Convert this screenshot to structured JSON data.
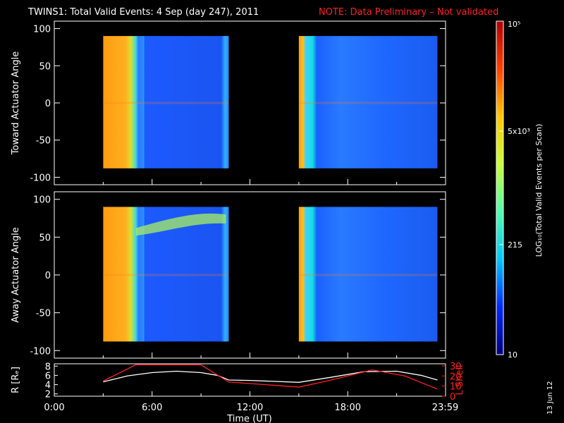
{
  "title": {
    "main": "TWINS1: Total Valid Events:  4 Sep (day 247), 2011",
    "note": "NOTE: Data Preliminary – Not validated"
  },
  "date_stamp": "13 Jun 12",
  "colors": {
    "background": "#000000",
    "axes": "#ffffff",
    "note": "#ff2020",
    "r_line": "#ffffff",
    "lshell_line": "#ff2020"
  },
  "colorbar": {
    "label": "LOG₁₀(Total Valid Events per Scan)",
    "ticks": [
      "10",
      "215",
      "5x10³",
      "10⁵"
    ],
    "colormap": [
      "#00007f",
      "#0028ff",
      "#00c8ff",
      "#50ffaa",
      "#c8ff37",
      "#ffc800",
      "#ff4000",
      "#b00000"
    ]
  },
  "chart_data": [
    {
      "type": "heatmap",
      "ylabel": "Toward Actuator Angle",
      "xlim": [
        0,
        24
      ],
      "ylim": [
        -110,
        110
      ],
      "yticks": [
        "100",
        "50",
        "0",
        "-50",
        "-100"
      ],
      "blocks": [
        {
          "start_hour": 3.0,
          "end_hour": 10.7,
          "angle_range": [
            -88,
            90
          ]
        },
        {
          "start_hour": 15.0,
          "end_hour": 23.5,
          "angle_range": [
            -88,
            90
          ]
        }
      ]
    },
    {
      "type": "heatmap",
      "ylabel": "Away Actuator Angle",
      "xlim": [
        0,
        24
      ],
      "ylim": [
        -110,
        110
      ],
      "yticks": [
        "100",
        "50",
        "0",
        "-50",
        "-100"
      ],
      "blocks": [
        {
          "start_hour": 3.0,
          "end_hour": 10.7,
          "angle_range": [
            -88,
            90
          ]
        },
        {
          "start_hour": 15.0,
          "end_hour": 23.5,
          "angle_range": [
            -88,
            90
          ]
        }
      ]
    },
    {
      "type": "line",
      "xlabel": "Time (UT)",
      "ylabel_left": "R [Rₑ]",
      "ylabel_right": "L Shell",
      "xlim": [
        0,
        24
      ],
      "xticks": [
        "0:00",
        "6:00",
        "12:00",
        "18:00",
        "23:59"
      ],
      "left_ylim": [
        1.5,
        8.5
      ],
      "left_yticks": [
        "2",
        "4",
        "6",
        "8"
      ],
      "right_ylim": [
        0,
        32
      ],
      "right_yticks": [
        "0",
        "10",
        "20",
        "30"
      ],
      "series": [
        {
          "axis": "left",
          "x": [
            3.0,
            4.5,
            6.0,
            7.5,
            9.0,
            10.0,
            10.7,
            12.0,
            15.0,
            17.0,
            19.0,
            21.0,
            22.5,
            23.5
          ],
          "values": [
            4.6,
            5.9,
            6.6,
            6.9,
            6.6,
            6.0,
            5.0,
            4.9,
            4.5,
            5.6,
            6.8,
            6.9,
            6.0,
            5.0
          ]
        },
        {
          "axis": "right",
          "x": [
            3.0,
            5.0,
            9.0,
            10.7,
            15.0,
            17.0,
            19.5,
            21.5,
            23.5
          ],
          "values": [
            15,
            31,
            31,
            14,
            9,
            16,
            26,
            20,
            7
          ]
        }
      ]
    }
  ]
}
